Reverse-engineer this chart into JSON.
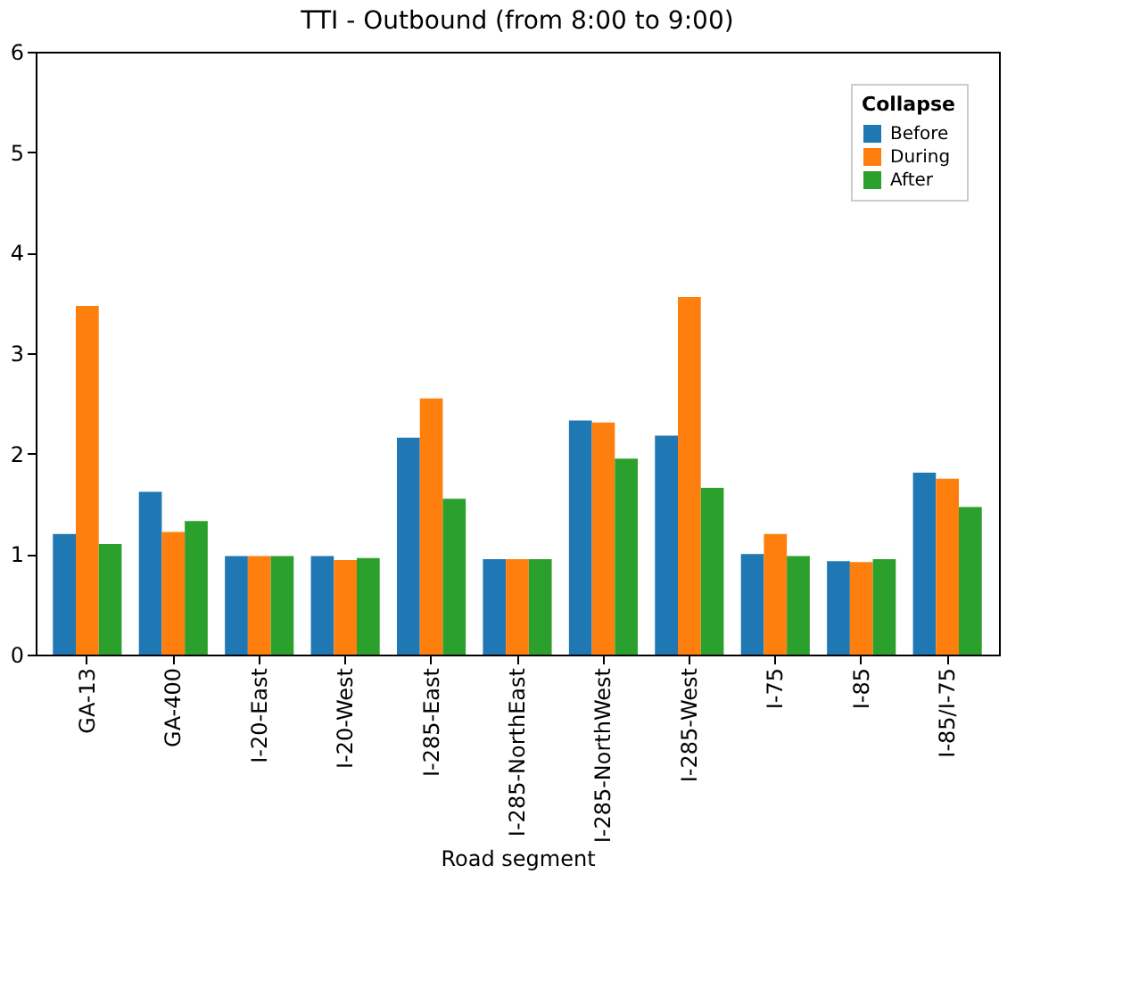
{
  "chart_data": {
    "type": "bar",
    "title": "TTI - Outbound (from 8:00 to 9:00)",
    "xlabel": "Road segment",
    "legend_title": "Collapse",
    "legend": "top right",
    "grid": false,
    "categories": [
      "GA-13",
      "GA-400",
      "I-20-East",
      "I-20-West",
      "I-285-East",
      "I-285-NorthEast",
      "I-285-NorthWest",
      "I-285-West",
      "I-75",
      "I-85",
      "I-85/I-75"
    ],
    "ylim": [
      0,
      6
    ],
    "yticks": [
      0,
      1,
      2,
      3,
      4,
      5,
      6
    ],
    "series": [
      {
        "name": "Before",
        "color": "#1f77b4",
        "values": [
          1.2,
          1.62,
          0.98,
          0.98,
          2.16,
          0.95,
          2.33,
          2.18,
          1.0,
          0.93,
          1.81
        ]
      },
      {
        "name": "During",
        "color": "#ff7f0e",
        "values": [
          3.47,
          1.22,
          0.98,
          0.94,
          2.55,
          0.95,
          2.31,
          3.56,
          1.2,
          0.92,
          1.75
        ]
      },
      {
        "name": "After",
        "color": "#2ca02c",
        "values": [
          1.1,
          1.33,
          0.98,
          0.96,
          1.55,
          0.95,
          1.95,
          1.66,
          0.98,
          0.95,
          1.47
        ]
      }
    ]
  }
}
